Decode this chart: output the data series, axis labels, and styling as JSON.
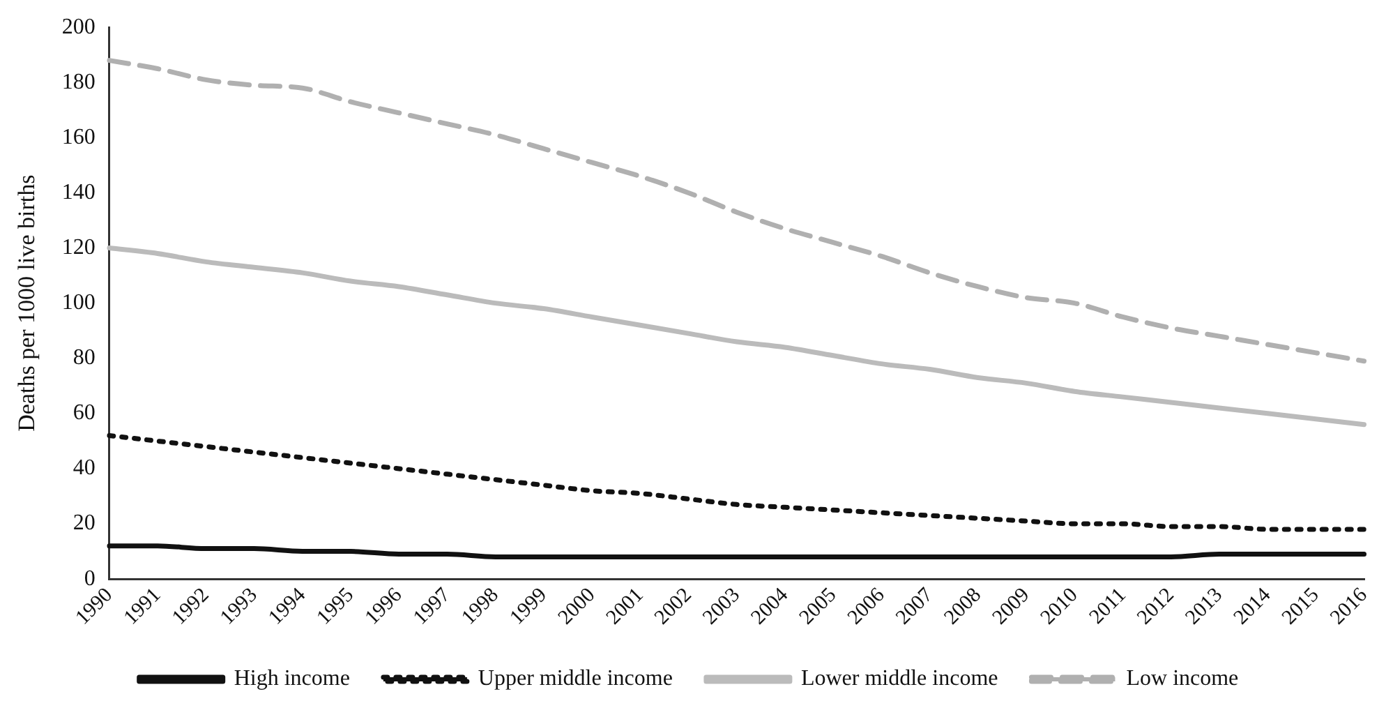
{
  "chart_data": {
    "type": "line",
    "ylabel": "Deaths per 1000 live births",
    "categories": [
      "1990",
      "1991",
      "1992",
      "1993",
      "1994",
      "1995",
      "1996",
      "1997",
      "1998",
      "1999",
      "2000",
      "2001",
      "2002",
      "2003",
      "2004",
      "2005",
      "2006",
      "2007",
      "2008",
      "2009",
      "2010",
      "2011",
      "2012",
      "2013",
      "2014",
      "2015",
      "2016"
    ],
    "ylim": [
      0,
      200
    ],
    "yticks": [
      0,
      20,
      40,
      60,
      80,
      100,
      120,
      140,
      160,
      180,
      200
    ],
    "grid": false,
    "legend": "bottom",
    "marker": "none",
    "series": [
      {
        "name": "High income",
        "color": "#111111",
        "line_style": "solid",
        "values": [
          12,
          12,
          11,
          11,
          10,
          10,
          9,
          9,
          8,
          8,
          8,
          8,
          8,
          8,
          8,
          8,
          8,
          8,
          8,
          8,
          8,
          8,
          8,
          9,
          9,
          9,
          9
        ]
      },
      {
        "name": "Upper middle income",
        "color": "#111111",
        "line_style": "dotted",
        "values": [
          52,
          50,
          48,
          46,
          44,
          42,
          40,
          38,
          36,
          34,
          32,
          31,
          29,
          27,
          26,
          25,
          24,
          23,
          22,
          21,
          20,
          20,
          19,
          19,
          18,
          18,
          18
        ]
      },
      {
        "name": "Lower middle income",
        "color": "#bbbbbb",
        "line_style": "solid",
        "values": [
          120,
          118,
          115,
          113,
          111,
          108,
          106,
          103,
          100,
          98,
          95,
          92,
          89,
          86,
          84,
          81,
          78,
          76,
          73,
          71,
          68,
          66,
          64,
          62,
          60,
          58,
          56
        ]
      },
      {
        "name": "Low income",
        "color": "#b0b0b0",
        "line_style": "dashed",
        "values": [
          188,
          185,
          181,
          179,
          178,
          173,
          169,
          165,
          161,
          156,
          151,
          146,
          140,
          133,
          127,
          122,
          117,
          111,
          106,
          102,
          100,
          95,
          91,
          88,
          85,
          82,
          79
        ]
      }
    ]
  }
}
